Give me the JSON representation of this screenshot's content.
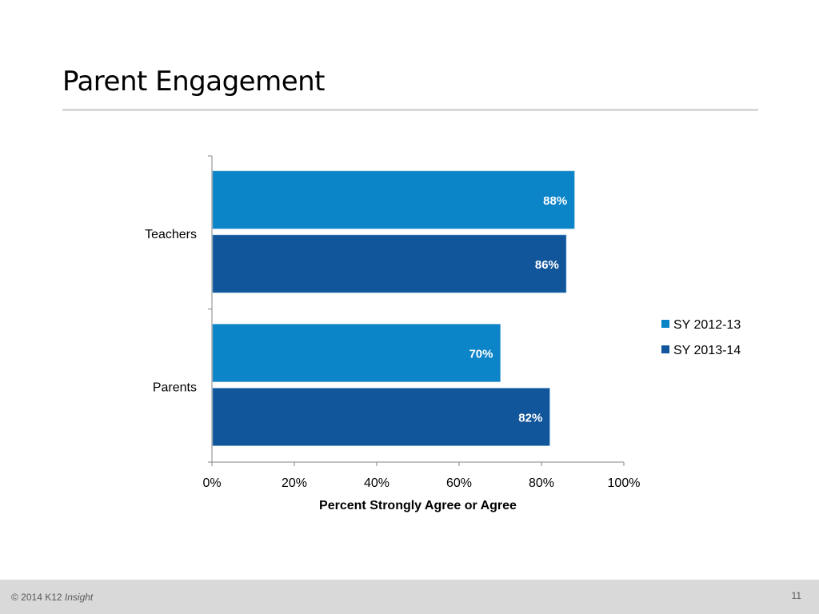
{
  "slide": {
    "title": "Parent Engagement",
    "footer": {
      "copyright": "© 2014 K12",
      "brand": "Insight",
      "page_number": "11"
    }
  },
  "chart_data": {
    "type": "bar",
    "orientation": "horizontal",
    "title": "",
    "categories": [
      "Teachers",
      "Parents"
    ],
    "series": [
      {
        "name": "SY 2012-13",
        "values": [
          88,
          70
        ],
        "labels": [
          "88%",
          "70%"
        ],
        "color": "#0b84c8"
      },
      {
        "name": "SY 2013-14",
        "values": [
          86,
          82
        ],
        "labels": [
          "86%",
          "82%"
        ],
        "color": "#11559a"
      }
    ],
    "xlabel": "Percent Strongly Agree or Agree",
    "ylabel": "",
    "xlim": [
      0,
      100
    ],
    "xticks": [
      "0%",
      "20%",
      "40%",
      "60%",
      "80%",
      "100%"
    ],
    "xtick_values": [
      0,
      20,
      40,
      60,
      80,
      100
    ],
    "grid": false,
    "legend": "right"
  }
}
